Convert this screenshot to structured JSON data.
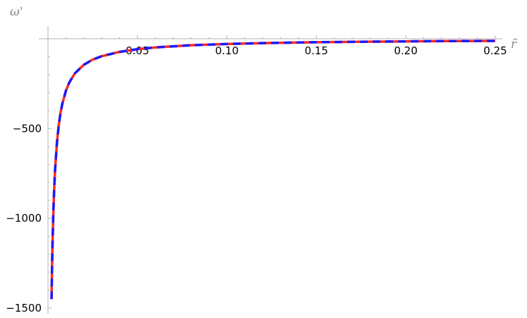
{
  "chart_data": {
    "type": "line",
    "xlabel": "r̃",
    "ylabel": "ω'",
    "xlim": [
      0.0,
      0.25
    ],
    "ylim": [
      -1500,
      0
    ],
    "x_ticks": [
      {
        "value": 0.05,
        "label": "0.05"
      },
      {
        "value": 0.1,
        "label": "0.10"
      },
      {
        "value": 0.15,
        "label": "0.15"
      },
      {
        "value": 0.2,
        "label": "0.20"
      },
      {
        "value": 0.25,
        "label": "0.25"
      }
    ],
    "y_ticks": [
      {
        "value": -500,
        "label": "-500"
      },
      {
        "value": -1000,
        "label": "-1000"
      },
      {
        "value": -1500,
        "label": "-1500"
      }
    ],
    "grid": false,
    "series": [
      {
        "style": "solid",
        "color": "#ff2a1f",
        "x": [
          0.002,
          0.0022,
          0.0025,
          0.003,
          0.0035,
          0.004,
          0.005,
          0.006,
          0.007,
          0.008,
          0.01,
          0.012,
          0.015,
          0.02,
          0.025,
          0.03,
          0.04,
          0.05,
          0.06,
          0.08,
          0.1,
          0.12,
          0.15,
          0.18,
          0.2,
          0.22,
          0.25
        ],
        "y": [
          -1450,
          -1320,
          -1160,
          -967,
          -829,
          -725,
          -580,
          -483,
          -414,
          -363,
          -290,
          -242,
          -193,
          -145,
          -116,
          -97,
          -73,
          -58,
          -48,
          -36,
          -29,
          -24,
          -19,
          -16,
          -14.5,
          -13,
          -11.6
        ]
      },
      {
        "style": "dashed",
        "color": "#1a1aff",
        "x": [
          0.002,
          0.0022,
          0.0025,
          0.003,
          0.0035,
          0.004,
          0.005,
          0.006,
          0.007,
          0.008,
          0.01,
          0.012,
          0.015,
          0.02,
          0.025,
          0.03,
          0.04,
          0.05,
          0.06,
          0.08,
          0.1,
          0.12,
          0.15,
          0.18,
          0.2,
          0.22,
          0.25
        ],
        "y": [
          -1450,
          -1320,
          -1160,
          -967,
          -829,
          -725,
          -580,
          -483,
          -414,
          -363,
          -290,
          -242,
          -193,
          -145,
          -116,
          -97,
          -73,
          -58,
          -48,
          -36,
          -29,
          -24,
          -19,
          -16,
          -14.5,
          -13,
          -11.6
        ]
      }
    ]
  }
}
